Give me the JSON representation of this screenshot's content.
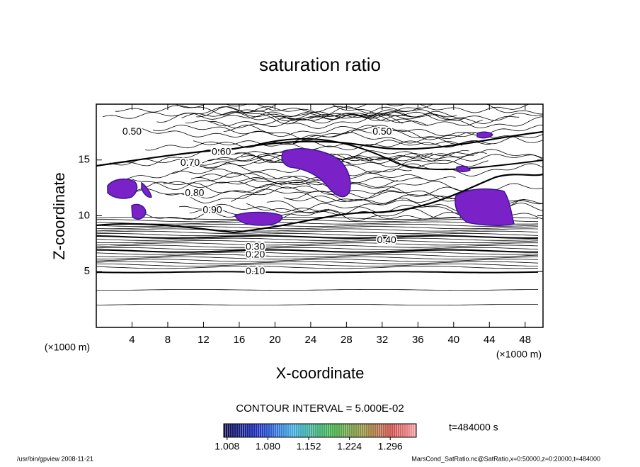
{
  "chart_data": {
    "type": "contour",
    "title": "saturation ratio",
    "x_label": "X-coordinate",
    "y_label": "Z-coordinate",
    "x_unit": "(×1000 m)",
    "y_unit": "(×1000 m)",
    "xlim": [
      0,
      50
    ],
    "xticks": [
      4,
      8,
      12,
      16,
      20,
      24,
      28,
      32,
      36,
      40,
      44,
      48
    ],
    "ylim": [
      0,
      20
    ],
    "yticks": [
      5,
      10,
      15
    ],
    "contour_interval": "CONTOUR INTERVAL = 5.000E-02",
    "contour_labels": [
      {
        "value": 0.1,
        "label": "0.10"
      },
      {
        "value": 0.2,
        "label": "0.20"
      },
      {
        "value": 0.3,
        "label": "0.30"
      },
      {
        "value": 0.4,
        "label": "0.40"
      },
      {
        "value": 0.5,
        "label": "0.50"
      },
      {
        "value": 0.5,
        "label": "0.50"
      },
      {
        "value": 0.6,
        "label": "0.60"
      },
      {
        "value": 0.7,
        "label": "0.70"
      },
      {
        "value": 0.8,
        "label": "0.80"
      },
      {
        "value": 0.9,
        "label": "0.90"
      }
    ],
    "time_label": "t=484000 s",
    "colorbar": {
      "lim": [
        1.002,
        1.342
      ],
      "ticks": [
        1.008,
        {
          "value": 1.08,
          "label": "1.080"
        },
        1.152,
        1.224,
        1.296
      ]
    },
    "footer_left": "/usr/bin/gpview   2008-11-21",
    "footer_right": "MarsCond_SatRatio.nc@SatRatio,x=0:50000,z=0:20000,t=484000"
  }
}
